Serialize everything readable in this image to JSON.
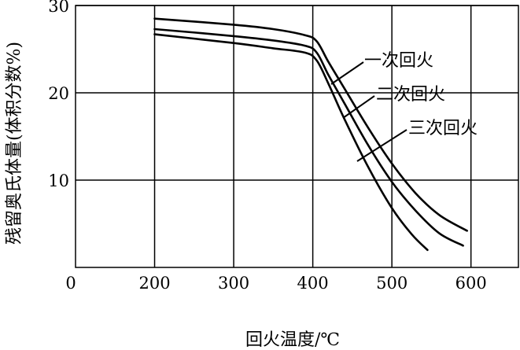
{
  "chart_data": {
    "type": "line",
    "title": "",
    "xlabel": "回火温度/℃",
    "ylabel": "残留奥氏体量(体积分数%)",
    "xlim": [
      100,
      660
    ],
    "ylim": [
      0,
      30
    ],
    "x_origin_label": "0",
    "xticks": [
      200,
      300,
      400,
      500,
      600
    ],
    "yticks": [
      10,
      20,
      30
    ],
    "grid": true,
    "series": [
      {
        "name": "一次回火",
        "points": [
          [
            200,
            28.5
          ],
          [
            300,
            27.8
          ],
          [
            350,
            27.3
          ],
          [
            390,
            26.6
          ],
          [
            405,
            25.9
          ],
          [
            420,
            23.5
          ],
          [
            440,
            20.5
          ],
          [
            470,
            16.0
          ],
          [
            500,
            11.9
          ],
          [
            530,
            8.5
          ],
          [
            560,
            6.0
          ],
          [
            595,
            4.2
          ]
        ]
      },
      {
        "name": "二次回火",
        "points": [
          [
            200,
            27.3
          ],
          [
            300,
            26.5
          ],
          [
            350,
            26.0
          ],
          [
            390,
            25.4
          ],
          [
            405,
            24.6
          ],
          [
            420,
            22.0
          ],
          [
            440,
            18.8
          ],
          [
            470,
            14.0
          ],
          [
            500,
            9.8
          ],
          [
            530,
            6.5
          ],
          [
            560,
            3.9
          ],
          [
            590,
            2.5
          ]
        ]
      },
      {
        "name": "三次回火",
        "points": [
          [
            200,
            26.7
          ],
          [
            300,
            25.7
          ],
          [
            350,
            25.1
          ],
          [
            390,
            24.6
          ],
          [
            405,
            23.7
          ],
          [
            420,
            21.0
          ],
          [
            440,
            17.0
          ],
          [
            470,
            11.5
          ],
          [
            500,
            6.8
          ],
          [
            525,
            3.8
          ],
          [
            545,
            2.0
          ]
        ]
      }
    ]
  }
}
